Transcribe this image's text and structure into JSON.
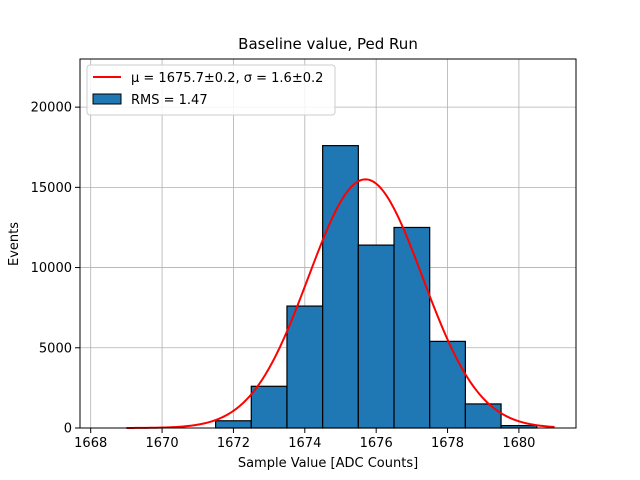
{
  "chart_data": {
    "type": "bar",
    "title": "Baseline value, Ped Run",
    "xlabel": "Sample Value [ADC Counts]",
    "ylabel": "Events",
    "xlim": [
      1667.7,
      1681.6
    ],
    "ylim": [
      0,
      23000
    ],
    "xticks": [
      1668,
      1670,
      1672,
      1674,
      1676,
      1678,
      1680
    ],
    "yticks": [
      0,
      5000,
      10000,
      15000,
      20000
    ],
    "grid": true,
    "legend_position": "top-left",
    "bins": [
      {
        "start": 1669.5,
        "end": 1670.5,
        "value": 0
      },
      {
        "start": 1670.5,
        "end": 1671.5,
        "value": 0
      },
      {
        "start": 1671.5,
        "end": 1672.5,
        "value": 450
      },
      {
        "start": 1672.5,
        "end": 1673.5,
        "value": 2600
      },
      {
        "start": 1673.5,
        "end": 1674.5,
        "value": 7600
      },
      {
        "start": 1674.5,
        "end": 1675.5,
        "value": 17600
      },
      {
        "start": 1675.5,
        "end": 1676.5,
        "value": 11400
      },
      {
        "start": 1676.5,
        "end": 1677.5,
        "value": 12500
      },
      {
        "start": 1677.5,
        "end": 1678.5,
        "value": 5400
      },
      {
        "start": 1678.5,
        "end": 1679.5,
        "value": 1500
      },
      {
        "start": 1679.5,
        "end": 1680.5,
        "value": 150
      }
    ],
    "fit": {
      "mu": 1675.7,
      "sigma": 1.6,
      "amplitude": 15500,
      "x_range": [
        1669.0,
        1681.0
      ]
    },
    "series": [
      {
        "name": "μ = 1675.7±0.2, σ = 1.6±0.2",
        "type": "line",
        "color": "#ff0000"
      },
      {
        "name": "RMS = 1.47",
        "type": "bar",
        "color": "#1f77b4"
      }
    ],
    "colors": {
      "bar_fill": "#1f77b4",
      "bar_edge": "#000000",
      "fit_line": "#ff0000",
      "grid": "#b0b0b0"
    }
  }
}
